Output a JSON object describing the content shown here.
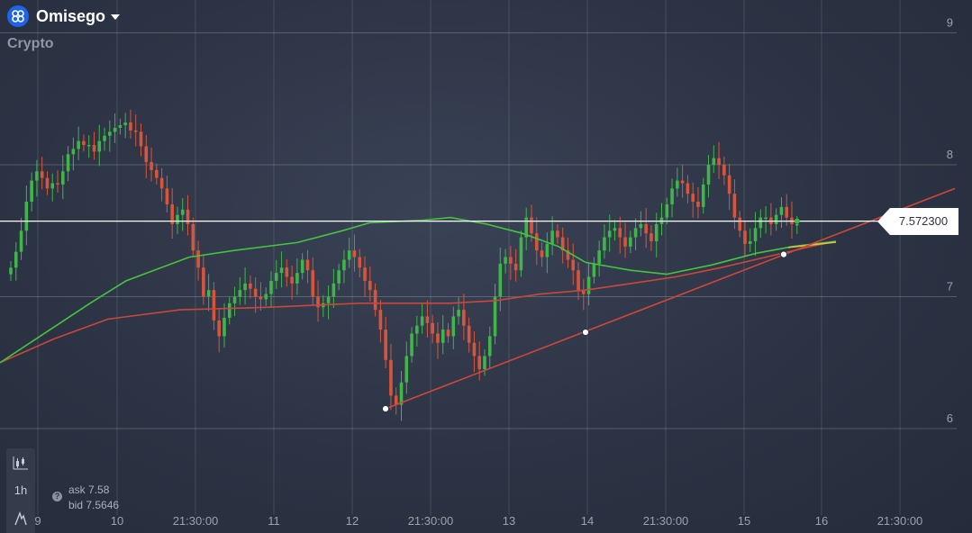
{
  "header": {
    "title": "Omisego",
    "subtitle": "Crypto"
  },
  "toolbar": {
    "interval": "1h"
  },
  "quote": {
    "ask_label": "ask",
    "ask": "7.58",
    "bid_label": "bid",
    "bid": "7.5646"
  },
  "price_label": "7.572300",
  "colors": {
    "up": "#3fb54a",
    "down": "#d8553c",
    "ma_green": "#46c43f",
    "ma_red": "#c9483a",
    "trend": "#d0473a",
    "current": "#ffffff"
  },
  "chart_data": {
    "type": "candlestick",
    "y_ticks": [
      "9",
      "8",
      "7",
      "6"
    ],
    "x_ticks": [
      "9",
      "10",
      "21:30:00",
      "11",
      "12",
      "21:30:00",
      "13",
      "14",
      "21:30:00",
      "15",
      "16",
      "21:30:00"
    ],
    "current_price": 7.5723,
    "close": [
      7.22,
      7.34,
      7.5,
      7.72,
      7.88,
      7.95,
      7.9,
      7.82,
      7.86,
      7.85,
      7.95,
      8.08,
      8.12,
      8.18,
      8.15,
      8.15,
      8.1,
      8.18,
      8.22,
      8.25,
      8.28,
      8.3,
      8.32,
      8.26,
      8.25,
      8.14,
      8.02,
      7.96,
      7.9,
      7.82,
      7.7,
      7.55,
      7.62,
      7.66,
      7.55,
      7.35,
      7.22,
      7.0,
      7.05,
      6.82,
      6.7,
      6.84,
      6.95,
      7.0,
      7.05,
      7.1,
      7.06,
      7.0,
      6.98,
      7.02,
      7.12,
      7.18,
      7.22,
      7.15,
      7.1,
      7.18,
      7.28,
      7.2,
      7.0,
      6.92,
      6.95,
      7.0,
      7.1,
      7.2,
      7.28,
      7.35,
      7.3,
      7.22,
      7.12,
      7.05,
      6.9,
      6.75,
      6.52,
      6.25,
      6.18,
      6.35,
      6.55,
      6.72,
      6.78,
      6.85,
      6.8,
      6.72,
      6.65,
      6.75,
      6.7,
      6.85,
      6.9,
      6.78,
      6.65,
      6.55,
      6.45,
      6.55,
      6.7,
      7.0,
      7.25,
      7.3,
      7.25,
      7.2,
      7.45,
      7.6,
      7.48,
      7.35,
      7.3,
      7.4,
      7.5,
      7.45,
      7.35,
      7.28,
      7.2,
      7.05,
      7.02,
      7.15,
      7.25,
      7.35,
      7.45,
      7.5,
      7.52,
      7.45,
      7.38,
      7.45,
      7.52,
      7.55,
      7.48,
      7.42,
      7.55,
      7.6,
      7.7,
      7.82,
      7.88,
      7.86,
      7.78,
      7.72,
      7.68,
      7.85,
      8.0,
      8.05,
      8.0,
      7.92,
      7.78,
      7.6,
      7.5,
      7.4,
      7.42,
      7.52,
      7.6,
      7.6,
      7.55,
      7.62,
      7.68,
      7.6,
      7.55,
      7.55
    ],
    "ma_fast": [
      [
        0,
        6.5
      ],
      [
        40,
        6.68
      ],
      [
        100,
        6.95
      ],
      [
        140,
        7.12
      ],
      [
        210,
        7.3
      ],
      [
        260,
        7.35
      ],
      [
        330,
        7.41
      ],
      [
        380,
        7.5
      ],
      [
        410,
        7.56
      ],
      [
        470,
        7.58
      ],
      [
        500,
        7.6
      ],
      [
        540,
        7.55
      ],
      [
        580,
        7.48
      ],
      [
        620,
        7.38
      ],
      [
        650,
        7.26
      ],
      [
        700,
        7.2
      ],
      [
        740,
        7.17
      ],
      [
        790,
        7.24
      ],
      [
        840,
        7.33
      ],
      [
        880,
        7.38
      ],
      [
        928,
        7.42
      ]
    ],
    "ma_slow": [
      [
        0,
        6.5
      ],
      [
        60,
        6.68
      ],
      [
        120,
        6.83
      ],
      [
        200,
        6.9
      ],
      [
        300,
        6.92
      ],
      [
        400,
        6.95
      ],
      [
        500,
        6.95
      ],
      [
        550,
        6.97
      ],
      [
        600,
        7.02
      ],
      [
        650,
        7.05
      ],
      [
        700,
        7.1
      ],
      [
        750,
        7.15
      ],
      [
        800,
        7.22
      ],
      [
        850,
        7.3
      ],
      [
        900,
        7.38
      ],
      [
        928,
        7.42
      ]
    ],
    "trendline": {
      "start": [
        428,
        6.15
      ],
      "end": [
        1060,
        7.82
      ]
    },
    "markers": [
      [
        428,
        6.15
      ],
      [
        650,
        6.73
      ],
      [
        870,
        7.32
      ]
    ]
  }
}
